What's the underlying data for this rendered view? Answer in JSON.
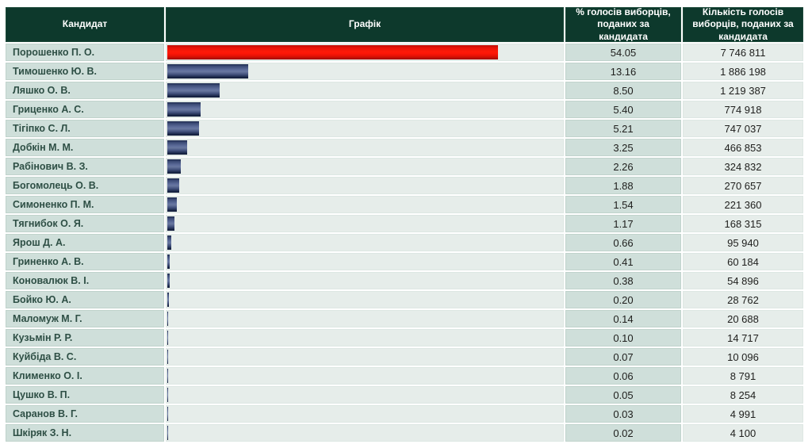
{
  "colors": {
    "header-bg": "#0d392c",
    "header-border": "#1d4a3a",
    "cell-green": "#cfdfda",
    "cell-green-border": "#c0d3cc",
    "cell-light": "#e6edea",
    "cell-light-border": "#dde7e3",
    "name-color": "#2e4f45",
    "num-color": "#1e1e1c",
    "bar-blue": "#3d4c77",
    "bar-red": "#f40e04"
  },
  "table": {
    "headers": {
      "candidate": "Кандидат",
      "graph": "Графік",
      "percent": "% голосів виборців, поданих за кандидата",
      "votes": "Кількість голосів виборців, поданих за кандидата"
    },
    "rows": [
      {
        "candidate": "Порошенко П. О.",
        "percent": "54.05",
        "votes": "7 746 811"
      },
      {
        "candidate": "Тимошенко Ю. В.",
        "percent": "13.16",
        "votes": "1 886 198"
      },
      {
        "candidate": "Ляшко О. В.",
        "percent": "8.50",
        "votes": "1 219 387"
      },
      {
        "candidate": "Гриценко А. С.",
        "percent": "5.40",
        "votes": "774 918"
      },
      {
        "candidate": "Тігіпко С. Л.",
        "percent": "5.21",
        "votes": "747 037"
      },
      {
        "candidate": "Добкін М. М.",
        "percent": "3.25",
        "votes": "466 853"
      },
      {
        "candidate": "Рабінович В. З.",
        "percent": "2.26",
        "votes": "324 832"
      },
      {
        "candidate": "Богомолець О. В.",
        "percent": "1.88",
        "votes": "270 657"
      },
      {
        "candidate": "Симоненко П. М.",
        "percent": "1.54",
        "votes": "221 360"
      },
      {
        "candidate": "Тягнибок О. Я.",
        "percent": "1.17",
        "votes": "168 315"
      },
      {
        "candidate": "Ярош Д. А.",
        "percent": "0.66",
        "votes": "95 940"
      },
      {
        "candidate": "Гриненко А. В.",
        "percent": "0.41",
        "votes": "60 184"
      },
      {
        "candidate": "Коновалюк В. І.",
        "percent": "0.38",
        "votes": "54 896"
      },
      {
        "candidate": "Бойко Ю. А.",
        "percent": "0.20",
        "votes": "28 762"
      },
      {
        "candidate": "Маломуж М. Г.",
        "percent": "0.14",
        "votes": "20 688"
      },
      {
        "candidate": "Кузьмін Р. Р.",
        "percent": "0.10",
        "votes": "14 717"
      },
      {
        "candidate": "Куйбіда В. С.",
        "percent": "0.07",
        "votes": "10 096"
      },
      {
        "candidate": "Клименко О. І.",
        "percent": "0.06",
        "votes": "8 791"
      },
      {
        "candidate": "Цушко В. П.",
        "percent": "0.05",
        "votes": "8 254"
      },
      {
        "candidate": "Саранов В. Г.",
        "percent": "0.03",
        "votes": "4 991"
      },
      {
        "candidate": "Шкіряк З. Н.",
        "percent": "0.02",
        "votes": "4 100"
      }
    ]
  },
  "chart_data": {
    "type": "bar",
    "orientation": "horizontal",
    "categories": [
      "Порошенко П. О.",
      "Тимошенко Ю. В.",
      "Ляшко О. В.",
      "Гриценко А. С.",
      "Тігіпко С. Л.",
      "Добкін М. М.",
      "Рабінович В. З.",
      "Богомолець О. В.",
      "Симоненко П. М.",
      "Тягнибок О. Я.",
      "Ярош Д. А.",
      "Гриненко А. В.",
      "Коновалюк В. І.",
      "Бойко Ю. А.",
      "Маломуж М. Г.",
      "Кузьмін Р. Р.",
      "Куйбіда В. С.",
      "Клименко О. І.",
      "Цушко В. П.",
      "Саранов В. Г.",
      "Шкіряк З. Н."
    ],
    "values": [
      54.05,
      13.16,
      8.5,
      5.4,
      5.21,
      3.25,
      2.26,
      1.88,
      1.54,
      1.17,
      0.66,
      0.41,
      0.38,
      0.2,
      0.14,
      0.1,
      0.07,
      0.06,
      0.05,
      0.03,
      0.02
    ],
    "votes": [
      7746811,
      1886198,
      1219387,
      774918,
      747037,
      466853,
      324832,
      270657,
      221360,
      168315,
      95940,
      60184,
      54896,
      28762,
      20688,
      14717,
      10096,
      8791,
      8254,
      4991,
      4100
    ],
    "value_label": "% голосів виборців, поданих за кандидата",
    "votes_label": "Кількість голосів виборців, поданих за кандидата",
    "grid": false,
    "legend": false,
    "highlight_index": 0,
    "bar_scale": {
      "max_value": 54.05,
      "max_width_fraction_of_column": 0.836
    },
    "bar_colors": {
      "leader": "#f40e04",
      "others": "#3d4c77"
    }
  }
}
